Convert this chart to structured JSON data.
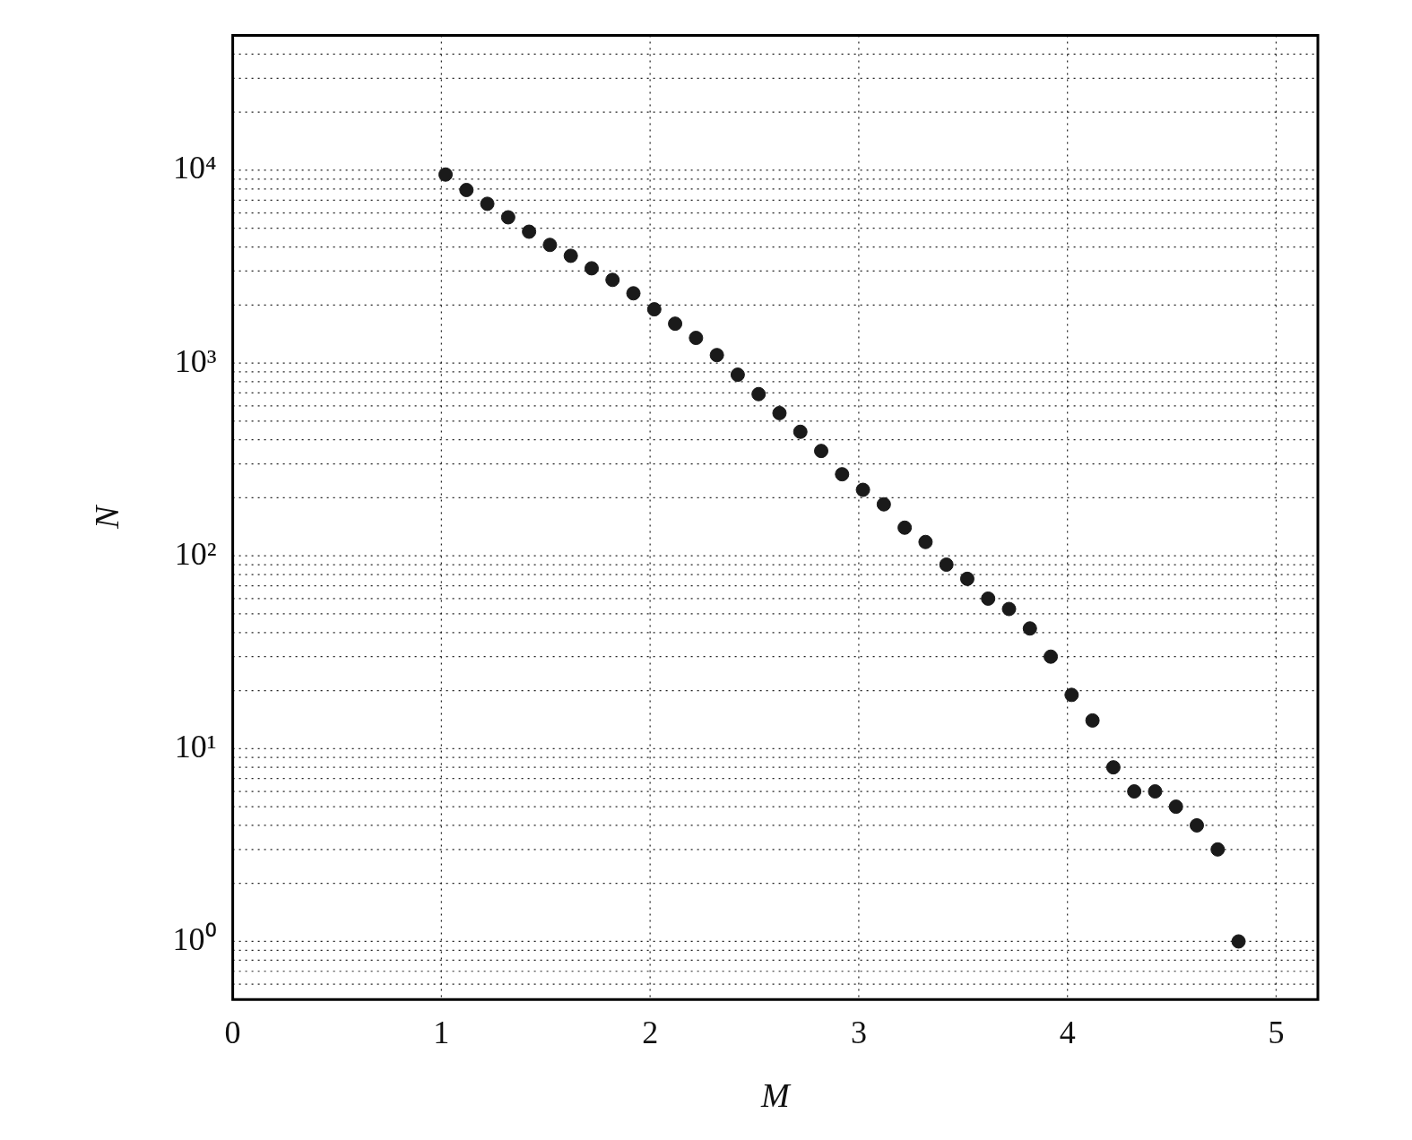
{
  "chart_data": {
    "type": "scatter",
    "xlabel": "M",
    "ylabel": "N",
    "x": [
      1.02,
      1.12,
      1.22,
      1.32,
      1.42,
      1.52,
      1.62,
      1.72,
      1.82,
      1.92,
      2.02,
      2.12,
      2.22,
      2.32,
      2.42,
      2.52,
      2.62,
      2.72,
      2.82,
      2.92,
      3.02,
      3.12,
      3.22,
      3.32,
      3.42,
      3.52,
      3.62,
      3.72,
      3.82,
      3.92,
      4.02,
      4.12,
      4.22,
      4.32,
      4.42,
      4.52,
      4.62,
      4.72,
      4.82
    ],
    "series": [
      {
        "color": "#1a1a1a",
        "values": [
          9500,
          7900,
          6700,
          5700,
          4800,
          4100,
          3600,
          3100,
          2700,
          2300,
          1900,
          1600,
          1350,
          1100,
          870,
          690,
          550,
          440,
          350,
          265,
          220,
          185,
          140,
          118,
          90,
          76,
          60,
          53,
          42,
          30,
          19,
          14,
          8,
          6,
          6,
          5,
          4,
          3,
          1
        ]
      }
    ],
    "xlim": [
      0,
      5.2
    ],
    "xticks": [
      0,
      1,
      2,
      3,
      4,
      5
    ],
    "ylim": [
      0.5,
      50000
    ],
    "yticks": [
      {
        "value": 1,
        "label": "10⁰"
      },
      {
        "value": 10,
        "label": "10¹"
      },
      {
        "value": 100,
        "label": "10²"
      },
      {
        "value": 1000,
        "label": "10³"
      },
      {
        "value": 10000,
        "label": "10⁴"
      }
    ],
    "log": "y",
    "grid": true,
    "marker": "circle",
    "legend": false
  }
}
